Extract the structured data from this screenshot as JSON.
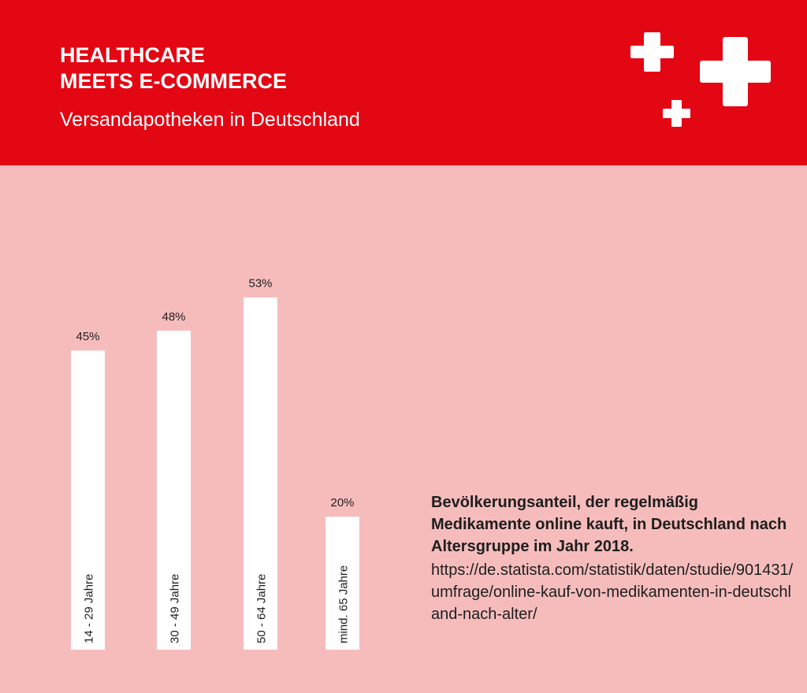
{
  "header": {
    "title_line1": "HEALTHCARE",
    "title_line2": "MEETS E-COMMERCE",
    "subtitle": "Versandapotheken in Deutschland",
    "background_color": "#e30613",
    "decoration": "plus-cross-icons"
  },
  "chart_data": {
    "type": "bar",
    "categories": [
      "14 - 29 Jahre",
      "30 - 49 Jahre",
      "50 - 64 Jahre",
      "mind. 65 Jahre"
    ],
    "values": [
      45,
      48,
      53,
      20
    ],
    "value_labels": [
      "45%",
      "48%",
      "53%",
      "20%"
    ],
    "unit": "%",
    "ylim": [
      0,
      60
    ],
    "grid": false,
    "bar_color": "#ffffff",
    "background_color": "#f6bcbc"
  },
  "note": {
    "caption": "Bevölkerungsanteil, der regelmäßig Medikamente online kauft, in Deutschland nach Altersgruppe im Jahr 2018.",
    "source": "https://de.statista.com/statistik/daten/studie/901431/umfrage/online-kauf-von-medikamenten-in-deutschland-nach-alter/"
  }
}
